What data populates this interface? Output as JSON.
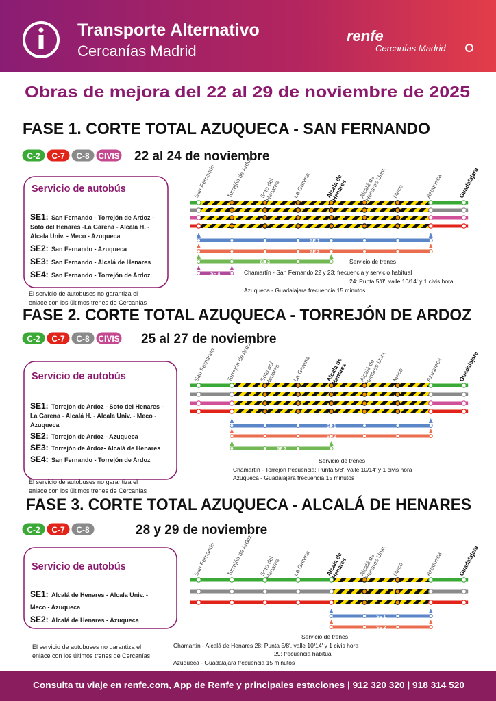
{
  "header": {
    "title": "Transporte Alternativo",
    "subtitle": "Cercanías Madrid",
    "brand": "renfe",
    "brand_sub": "Cercanías Madrid"
  },
  "headline": "Obras de mejora del 22 al 29 de noviembre de 2025",
  "phases": [
    {
      "title": "FASE 1. CORTE TOTAL AZUQUECA - SAN FERNANDO",
      "badges": [
        {
          "label": "C-2",
          "color": "#3aa935"
        },
        {
          "label": "C-7",
          "color": "#e2231a"
        },
        {
          "label": "C-8",
          "color": "#8a8a8a"
        },
        {
          "label": "CIVIS",
          "color": "#c4478f"
        }
      ],
      "dates": "22 al 24 de noviembre",
      "bus_title": "Servicio de autobús",
      "services": [
        {
          "code": "SE1:",
          "lines": [
            "San Fernando - Torrejón de Ardoz -",
            "Soto del Henares -La Garena - Alcalá H. -",
            "Alcala Univ. - Meco - Azuqueca"
          ]
        },
        {
          "code": "SE2:",
          "lines": [
            "San Fernando - Azuqueca"
          ]
        },
        {
          "code": "SE3:",
          "lines": [
            "San Fernando - Alcalá de Henares"
          ]
        },
        {
          "code": "SE4:",
          "lines": [
            "San Fernando - Torrejón de Ardoz"
          ]
        }
      ],
      "disclaimer": [
        "El servicio de autobuses no garantiza el",
        "enlace con los últimos trenes de Cercanías"
      ],
      "stations": [
        [
          "San Fernando"
        ],
        [
          "Torrejón de Ardoz"
        ],
        [
          "Soto del",
          "Henares"
        ],
        [
          "La Garena"
        ],
        [
          "Alcalá de",
          "Henares"
        ],
        [
          "Alcalá de",
          "Henares Univ."
        ],
        [
          "Meco"
        ],
        [
          "Azuqueca"
        ],
        [
          "Guadalajara"
        ]
      ],
      "bus_bars": [
        "SE 1",
        "SE 2",
        "SE 3",
        "SE 4"
      ],
      "train_notes": [
        "Servicio de trenes",
        "Chamartín - San Fernando 22 y 23: frecuencia y servicio habitual",
        "24: Punta 5/8', valle 10/14' y 1 civis hora",
        "Azuqueca - Guadalajara frecuencia 15 minutos"
      ]
    },
    {
      "title": "FASE 2. CORTE TOTAL AZUQUECA - TORREJÓN DE ARDOZ",
      "badges": [
        {
          "label": "C-2",
          "color": "#3aa935"
        },
        {
          "label": "C-7",
          "color": "#e2231a"
        },
        {
          "label": "C-8",
          "color": "#8a8a8a"
        },
        {
          "label": "CIVIS",
          "color": "#c4478f"
        }
      ],
      "dates": "25 al 27 de noviembre",
      "bus_title": "Servicio de autobús",
      "services": [
        {
          "code": "SE1:",
          "lines": [
            "Torrejón de Ardoz - Soto del Henares -",
            "La Garena - Alcalá H. - Alcala Univ. - Meco -",
            "Azuqueca"
          ]
        },
        {
          "code": "SE2:",
          "lines": [
            "Torrejón de Ardoz - Azuqueca"
          ]
        },
        {
          "code": "SE3:",
          "lines": [
            "Torrejón de Ardoz- Alcalá de Henares"
          ]
        },
        {
          "code": "SE4:",
          "lines": [
            "San Fernando - Torrejón de Ardoz"
          ]
        }
      ],
      "disclaimer": [
        "El servicio de autobuses no garantiza el",
        "enlace con los últimos trenes de Cercanías"
      ],
      "stations": [
        [
          "San Fernando"
        ],
        [
          "Torrejón de Ardoz"
        ],
        [
          "Soto del",
          "Henares"
        ],
        [
          "La Garena"
        ],
        [
          "Alcalá de",
          "Henares"
        ],
        [
          "Alcalá de",
          "Henares Univ."
        ],
        [
          "Meco"
        ],
        [
          "Azuqueca"
        ],
        [
          "Guadalajara"
        ]
      ],
      "bus_bars": [
        "SE 1",
        "SE 2",
        "SE 3"
      ],
      "train_notes": [
        "Servicio de trenes",
        "Chamartín - Torrejón frecuencia: Punta 5/8', valle 10/14' y 1 civis hora",
        "Azuqueca - Guadalajara frecuencia 15 minutos"
      ]
    },
    {
      "title": "FASE 3. CORTE TOTAL AZUQUECA - ALCALÁ DE HENARES",
      "badges": [
        {
          "label": "C-2",
          "color": "#3aa935"
        },
        {
          "label": "C-7",
          "color": "#e2231a"
        },
        {
          "label": "C-8",
          "color": "#8a8a8a"
        }
      ],
      "dates": "28 y 29 de noviembre",
      "bus_title": "Servicio de autobús",
      "services": [
        {
          "code": "SE1:",
          "lines": [
            "Alcalá de Henares - Alcala Univ. -",
            "Meco - Azuqueca"
          ]
        },
        {
          "code": "SE2:",
          "lines": [
            "Alcalá de Henares - Azuqueca"
          ]
        }
      ],
      "disclaimer": [
        "El servicio de autobuses no garantiza el",
        "enlace con los últimos trenes de Cercanías"
      ],
      "stations": [
        [
          "San Fernando"
        ],
        [
          "Torrejón de Ardoz"
        ],
        [
          "Soto del",
          "Henares"
        ],
        [
          "La Garena"
        ],
        [
          "Alcalá de",
          "Henares"
        ],
        [
          "Alcalá de",
          "Henares Univ."
        ],
        [
          "Meco"
        ],
        [
          "Azuqueca"
        ],
        [
          "Guadalajara"
        ]
      ],
      "bus_bars": [
        "SE 1",
        "SE 2"
      ],
      "train_notes": [
        "Servicio de trenes",
        "Chamartín - Alcalá de Henares 28: Punta 5/8', valle 10/14' y 1 civis hora",
        "29: frecuencia habitual",
        "Azuqueca - Guadalajara frecuencia 15 minutos"
      ]
    }
  ],
  "footer": "Consulta tu viaje en renfe.com, App de Renfe y principales estaciones | 912 320 320 | 918 314 520"
}
